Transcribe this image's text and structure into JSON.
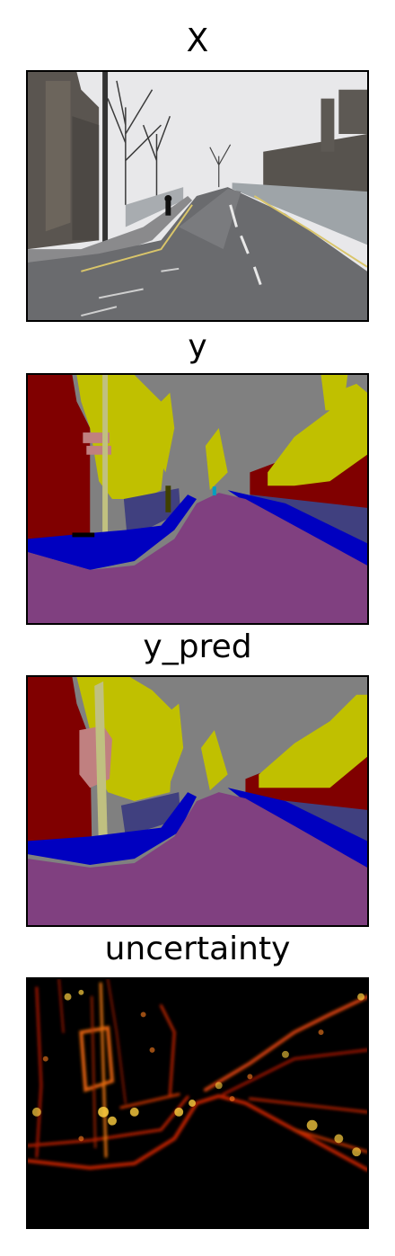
{
  "panels": [
    {
      "title": "X",
      "kind": "photo"
    },
    {
      "title": "y",
      "kind": "label-map"
    },
    {
      "title": "y_pred",
      "kind": "prediction-map"
    },
    {
      "title": "uncertainty",
      "kind": "heatmap"
    }
  ],
  "colors": {
    "sky": "#808080",
    "building": "#800000",
    "tree": "#c0c000",
    "wall": "#40407f",
    "road": "#804080",
    "pavement": "#0000c0",
    "pole": "#c0c080",
    "sign": "#c08080",
    "heat_low": "#000000",
    "heat_mid": "#c02000",
    "heat_high": "#ffd040"
  }
}
